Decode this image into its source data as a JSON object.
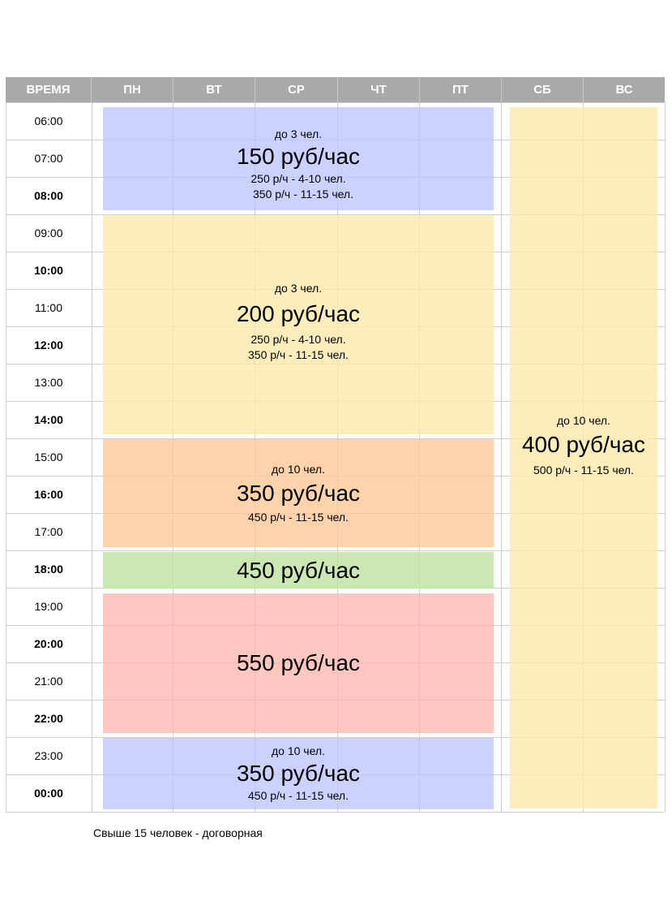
{
  "header": {
    "time": "ВРЕМЯ",
    "days": [
      "ПН",
      "ВТ",
      "СР",
      "ЧТ",
      "ПТ",
      "СБ",
      "ВС"
    ]
  },
  "times": [
    {
      "label": "06:00",
      "bold": false
    },
    {
      "label": "07:00",
      "bold": false
    },
    {
      "label": "08:00",
      "bold": true
    },
    {
      "label": "09:00",
      "bold": false
    },
    {
      "label": "10:00",
      "bold": true
    },
    {
      "label": "11:00",
      "bold": false
    },
    {
      "label": "12:00",
      "bold": true
    },
    {
      "label": "13:00",
      "bold": false
    },
    {
      "label": "14:00",
      "bold": true
    },
    {
      "label": "15:00",
      "bold": false
    },
    {
      "label": "16:00",
      "bold": true
    },
    {
      "label": "17:00",
      "bold": false
    },
    {
      "label": "18:00",
      "bold": true
    },
    {
      "label": "19:00",
      "bold": false
    },
    {
      "label": "20:00",
      "bold": true
    },
    {
      "label": "21:00",
      "bold": false
    },
    {
      "label": "22:00",
      "bold": true
    },
    {
      "label": "23:00",
      "bold": false
    },
    {
      "label": "00:00",
      "bold": true
    }
  ],
  "blocks": {
    "morning": {
      "note": "до 3 чел.",
      "price": "150 руб/час",
      "line1": "250 р/ч - 4-10 чел.",
      "line2": "350 р/ч - 11-15 чел."
    },
    "day": {
      "note": "до 3 чел.",
      "price": "200 руб/час",
      "line1": "250 р/ч - 4-10 чел.",
      "line2": "350 р/ч - 11-15 чел."
    },
    "afternoon": {
      "note": "до 10 чел.",
      "price": "350 руб/час",
      "line1": "450 р/ч - 11-15 чел."
    },
    "evening_peak": {
      "price": "450 руб/час"
    },
    "evening": {
      "price": "550 руб/час"
    },
    "night": {
      "note": "до 10 чел.",
      "price": "350 руб/час",
      "line1": "450 р/ч - 11-15 чел."
    },
    "weekend": {
      "note": "до 10 чел.",
      "price": "400 руб/час",
      "line1": "500 р/ч - 11-15 чел."
    }
  },
  "footer": "Свыше 15 человек - договорная"
}
